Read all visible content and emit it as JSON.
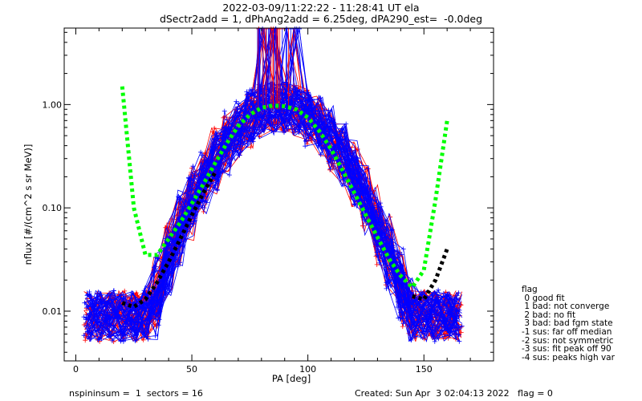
{
  "title_line1": "2022-03-09/11:22:22 - 11:28:41 UT ela",
  "title_line2": "dSectr2add = 1, dPhAng2add = 6.25deg, dPA290_est=  -0.0deg",
  "footer_left": "nspininsum =  1  sectors = 16",
  "footer_right": "Created: Sun Apr  3 02:04:13 2022   flag = 0",
  "legend": {
    "title": "flag",
    "items": [
      " 0 good fit",
      " 1 bad: not converge",
      " 2 bad: no fit",
      " 3 bad: bad fgm state",
      "-1 sus: far off median",
      "-2 sus: not symmetric",
      "-3 sus: fit peak off 90",
      "-4 sus: peaks high var"
    ]
  },
  "chart_data": {
    "type": "line",
    "title": "2022-03-09/11:22:22 - 11:28:41 UT ela",
    "subtitle": "dSectr2add = 1, dPhAng2add = 6.25deg, dPA290_est=  -0.0deg",
    "xlabel": "PA [deg]",
    "ylabel": "nflux [#/(cm^2 s sr MeV)]",
    "xlim": [
      -5,
      180
    ],
    "ylim": [
      0.0033,
      5.5
    ],
    "y_scale": "log",
    "x_ticks": [
      0,
      50,
      100,
      150
    ],
    "y_ticks": [
      {
        "value": 0.01,
        "label": "0.01"
      },
      {
        "value": 0.1,
        "label": "0.10"
      },
      {
        "value": 1.0,
        "label": "1.00"
      }
    ],
    "grid": false,
    "colors": {
      "red_traces": "#ff0000",
      "blue_traces": "#0000ff",
      "green_fit": "#00ff00",
      "black_fit": "#000000"
    },
    "series": [
      {
        "color": "#00ff00",
        "style": "dotted-thick",
        "x": [
          20,
          25,
          30,
          35,
          40,
          45,
          50,
          55,
          60,
          65,
          70,
          75,
          80,
          85,
          90,
          95,
          100,
          105,
          110,
          115,
          120,
          125,
          130,
          135,
          140,
          145,
          150,
          155,
          160
        ],
        "y": [
          1.5,
          0.1,
          0.035,
          0.035,
          0.05,
          0.072,
          0.11,
          0.17,
          0.27,
          0.42,
          0.62,
          0.8,
          0.93,
          0.98,
          0.96,
          0.9,
          0.75,
          0.55,
          0.37,
          0.23,
          0.14,
          0.085,
          0.052,
          0.032,
          0.022,
          0.017,
          0.025,
          0.12,
          0.7
        ]
      },
      {
        "color": "#000000",
        "style": "dotted-thick",
        "x": [
          20,
          25,
          30,
          35,
          40,
          45,
          50,
          55,
          60,
          145,
          150,
          155,
          160
        ],
        "y": [
          0.012,
          0.011,
          0.013,
          0.019,
          0.03,
          0.05,
          0.085,
          0.14,
          0.22,
          0.014,
          0.013,
          0.02,
          0.04
        ]
      }
    ]
  }
}
